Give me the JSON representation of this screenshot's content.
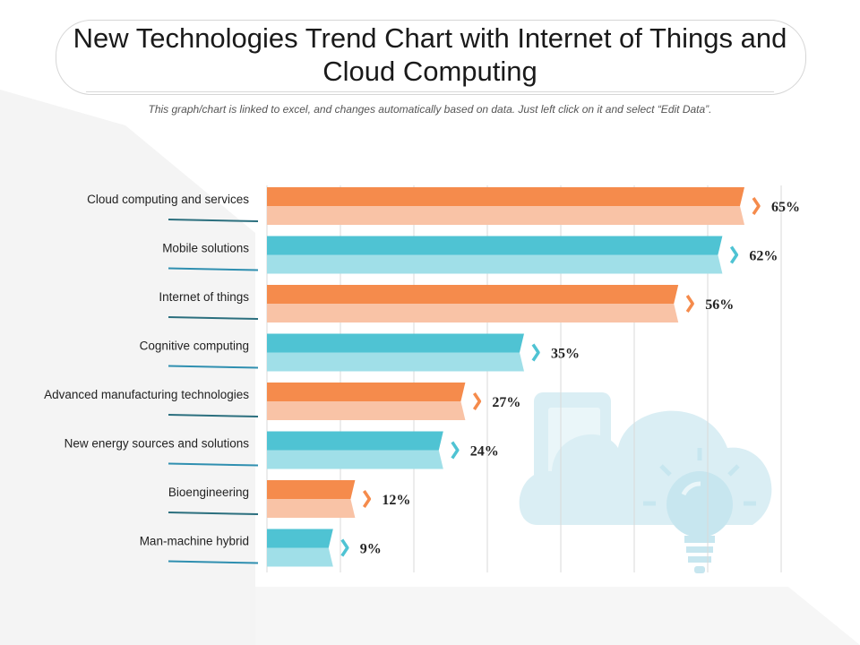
{
  "header": {
    "title": "New Technologies Trend Chart with Internet of Things and Cloud Computing",
    "subtitle": "This graph/chart is linked to excel, and changes automatically  based on data. Just left click on it and select “Edit Data”."
  },
  "colors": {
    "orange": "#f58b4c",
    "orange_light": "#f9c3a6",
    "blue": "#4fc3d3",
    "blue_light": "#a0dfe8",
    "label_line_blue": "#2f8fb0",
    "label_line_teal": "#2b6f7e",
    "grid": "#d9d9d9",
    "watermark": "#daeef4"
  },
  "decoration": {
    "icons": [
      "cloud-icon",
      "mobile-phone-icon",
      "light-bulb-icon"
    ]
  },
  "chart_data": {
    "type": "bar",
    "orientation": "horizontal",
    "categories": [
      "Cloud computing and services",
      "Mobile solutions",
      "Internet of things",
      "Cognitive computing",
      "Advanced manufacturing technologies",
      "New energy sources and solutions",
      "Bioengineering",
      "Man-machine hybrid"
    ],
    "values": [
      65,
      62,
      56,
      35,
      27,
      24,
      12,
      9
    ],
    "value_labels": [
      "65%",
      "62%",
      "56%",
      "35%",
      "27%",
      "24%",
      "12%",
      "9%"
    ],
    "bar_colors": [
      "orange",
      "blue",
      "orange",
      "blue",
      "orange",
      "blue",
      "orange",
      "blue"
    ],
    "xlim": [
      0,
      70
    ],
    "grid_step": 10,
    "grid": true,
    "legend": "none"
  }
}
